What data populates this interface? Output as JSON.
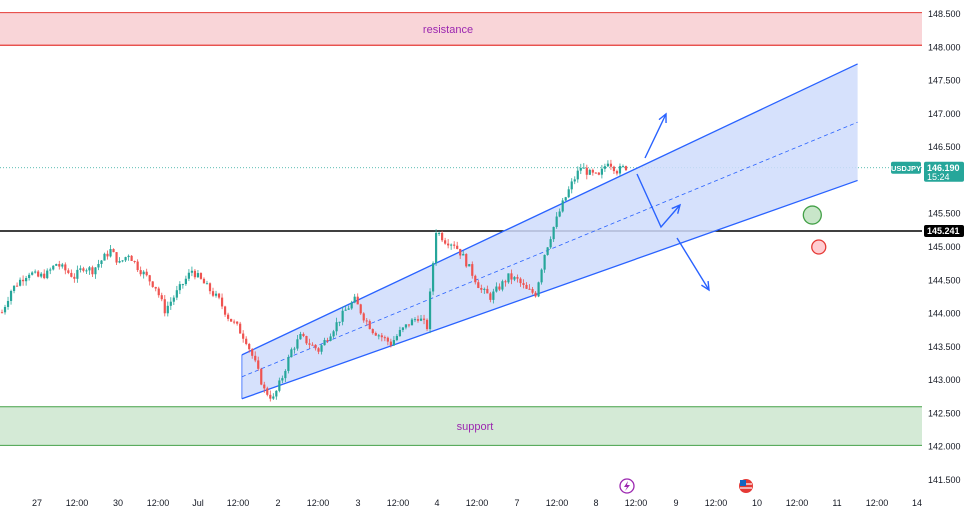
{
  "chart_data": {
    "type": "candlestick",
    "symbol": "USDJPY",
    "current_price": "146.190",
    "countdown": "15:24",
    "level_price": "145.241",
    "y_ticks": [
      "148.500",
      "148.000",
      "147.500",
      "147.000",
      "146.500",
      "145.500",
      "145.000",
      "144.500",
      "144.000",
      "143.500",
      "143.000",
      "142.500",
      "142.000",
      "141.500"
    ],
    "y_tick_values": [
      148.5,
      148.0,
      147.5,
      147.0,
      146.5,
      145.5,
      145.0,
      144.5,
      144.0,
      143.5,
      143.0,
      142.5,
      142.0,
      141.5
    ],
    "x_ticks": [
      "27",
      "12:00",
      "30",
      "12:00",
      "Jul",
      "12:00",
      "2",
      "12:00",
      "3",
      "12:00",
      "4",
      "12:00",
      "7",
      "12:00",
      "8",
      "12:00",
      "9",
      "12:00",
      "10",
      "12:00",
      "11",
      "12:00",
      "14"
    ],
    "ylim": [
      141.35,
      148.62
    ],
    "resistance": {
      "label": "resistance",
      "low": 148.03,
      "high": 148.52
    },
    "support": {
      "label": "support",
      "low": 142.02,
      "high": 142.6
    },
    "horizontal_line": 145.241,
    "channel": {
      "start_index": 0.33,
      "end_index": 1.17,
      "upper": [
        143.38,
        147.75
      ],
      "lower": [
        142.72,
        146.0
      ]
    },
    "price_path": [
      144.02,
      144.35,
      144.5,
      144.62,
      144.55,
      144.6,
      144.75,
      144.65,
      144.55,
      144.7,
      144.65,
      144.8,
      144.95,
      144.75,
      144.9,
      144.7,
      144.55,
      144.4,
      144.05,
      144.25,
      144.45,
      144.65,
      144.5,
      144.35,
      144.2,
      143.95,
      143.8,
      143.6,
      143.25,
      142.85,
      142.72,
      143.05,
      143.45,
      143.65,
      143.55,
      143.45,
      143.65,
      143.85,
      144.05,
      144.2,
      143.95,
      143.75,
      143.65,
      143.55,
      143.72,
      143.85,
      143.95,
      143.8,
      145.25,
      145.1,
      145.05,
      144.85,
      144.6,
      144.35,
      144.25,
      144.4,
      144.55,
      144.5,
      144.35,
      144.3,
      144.9,
      145.3,
      145.65,
      145.95,
      146.2,
      146.1,
      146.05,
      146.3,
      146.15,
      146.2
    ],
    "events": [
      {
        "icon": "lightning-icon",
        "x_index": 0.655
      },
      {
        "icon": "us-flag-icon",
        "x_index": 0.81
      }
    ],
    "markers": [
      {
        "name": "green-circle-marker",
        "color": "#43a047",
        "fill": "#c8e6c9",
        "price": 145.48,
        "x_index": 0.855
      },
      {
        "name": "red-circle-marker",
        "color": "#e53935",
        "fill": "#ffcdd2",
        "price": 145.0,
        "x_index": 0.862
      }
    ],
    "colors": {
      "up": "#26a69a",
      "down": "#ef5350",
      "channel": "#2962ff",
      "channel_fill": "#cfdcfb",
      "resistance_fill": "#f9d5d8",
      "resistance_line": "#e53935",
      "support_fill": "#d4ead6",
      "support_line": "#43a047",
      "current_price": "#26a69a"
    }
  }
}
